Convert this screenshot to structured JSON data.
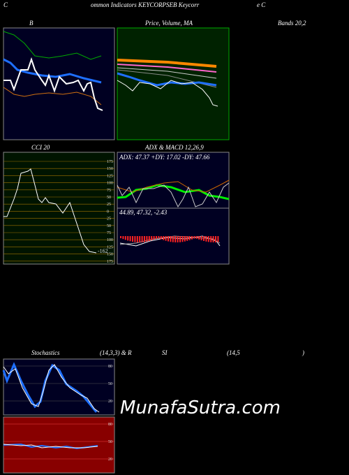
{
  "header": {
    "left": "C",
    "middle": "ommon Indicators KEYCORPSEB Keycorr",
    "right": "e C"
  },
  "panels": {
    "bands": {
      "title_left": "B",
      "title_right": "Bands 20,2"
    },
    "price": {
      "title": "Price, Volume, MA"
    },
    "cci": {
      "title": "CCI 20",
      "ticks": [
        "175",
        "150",
        "125",
        "100",
        "75",
        "50",
        "25",
        "0",
        "25",
        "50",
        "75",
        "100",
        "125",
        "150",
        "175"
      ],
      "value": "-162"
    },
    "adx": {
      "title": "ADX  & MACD 12,26,9",
      "readout": "ADX: 47.37 +DY: 17.02 -DY: 47.66"
    },
    "macd": {
      "readout": "44.89,  47.32,  -2.43"
    },
    "stoch": {
      "title": "Stochastics",
      "params": "(14,3,3) & R",
      "ticks": [
        "80",
        "50",
        "20"
      ]
    },
    "rsi": {
      "title": "SI",
      "params": "(14,5",
      "close": ")",
      "ticks": [
        "80",
        "50",
        "20"
      ]
    }
  },
  "watermark": "MunafaSutra.com"
}
